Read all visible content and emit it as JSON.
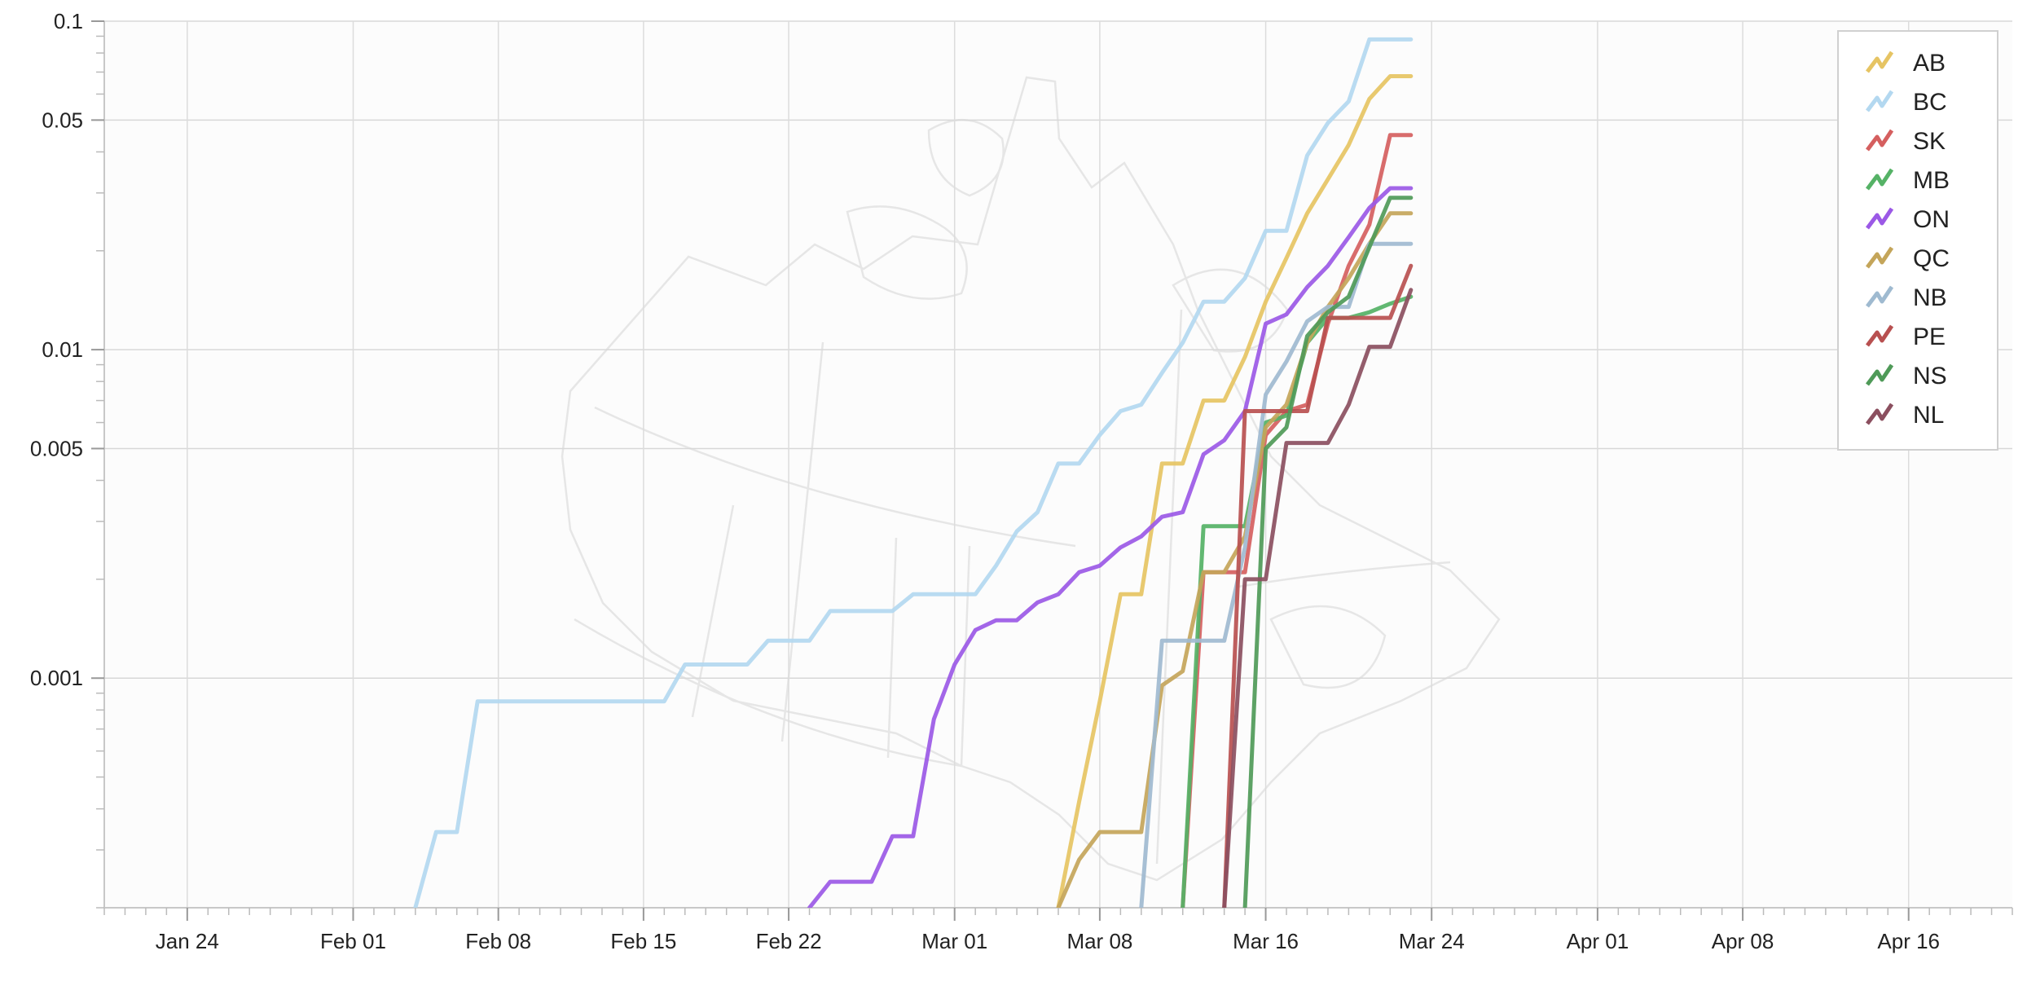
{
  "chart_data": {
    "type": "line",
    "title": "",
    "xlabel": "",
    "ylabel": "",
    "x_scale": "time",
    "y_scale": "log",
    "xlim": [
      "2020-01-20",
      "2020-04-21"
    ],
    "ylim": [
      0.0002,
      0.1
    ],
    "grid": true,
    "legend_position": "top-right",
    "background": "faint map of Canada",
    "x_ticks": [
      {
        "date": "2020-01-24",
        "label": "Jan 24"
      },
      {
        "date": "2020-02-01",
        "label": "Feb 01"
      },
      {
        "date": "2020-02-08",
        "label": "Feb 08"
      },
      {
        "date": "2020-02-15",
        "label": "Feb 15"
      },
      {
        "date": "2020-02-22",
        "label": "Feb 22"
      },
      {
        "date": "2020-03-01",
        "label": "Mar 01"
      },
      {
        "date": "2020-03-08",
        "label": "Mar 08"
      },
      {
        "date": "2020-03-16",
        "label": "Mar 16"
      },
      {
        "date": "2020-03-24",
        "label": "Mar 24"
      },
      {
        "date": "2020-04-01",
        "label": "Apr 01"
      },
      {
        "date": "2020-04-08",
        "label": "Apr 08"
      },
      {
        "date": "2020-04-16",
        "label": "Apr 16"
      }
    ],
    "y_ticks": [
      {
        "value": 0.1,
        "label": "0.1"
      },
      {
        "value": 0.05,
        "label": "0.05"
      },
      {
        "value": 0.01,
        "label": "0.01"
      },
      {
        "value": 0.005,
        "label": "0.005"
      },
      {
        "value": 0.001,
        "label": "0.001"
      }
    ],
    "series": [
      {
        "name": "AB",
        "color": "#e6c463",
        "points": [
          [
            "2020-03-06",
            0.0002
          ],
          [
            "2020-03-07",
            0.00042
          ],
          [
            "2020-03-08",
            0.00085
          ],
          [
            "2020-03-09",
            0.0018
          ],
          [
            "2020-03-10",
            0.0018
          ],
          [
            "2020-03-11",
            0.0045
          ],
          [
            "2020-03-12",
            0.0045
          ],
          [
            "2020-03-13",
            0.007
          ],
          [
            "2020-03-14",
            0.007
          ],
          [
            "2020-03-15",
            0.0095
          ],
          [
            "2020-03-16",
            0.014
          ],
          [
            "2020-03-17",
            0.019
          ],
          [
            "2020-03-18",
            0.026
          ],
          [
            "2020-03-19",
            0.033
          ],
          [
            "2020-03-20",
            0.042
          ],
          [
            "2020-03-21",
            0.058
          ],
          [
            "2020-03-22",
            0.068
          ],
          [
            "2020-03-23",
            0.068
          ]
        ]
      },
      {
        "name": "BC",
        "color": "#b3d8f0",
        "points": [
          [
            "2020-02-04",
            0.0002
          ],
          [
            "2020-02-05",
            0.00034
          ],
          [
            "2020-02-06",
            0.00034
          ],
          [
            "2020-02-07",
            0.00085
          ],
          [
            "2020-02-16",
            0.00085
          ],
          [
            "2020-02-17",
            0.0011
          ],
          [
            "2020-02-20",
            0.0011
          ],
          [
            "2020-02-21",
            0.0013
          ],
          [
            "2020-02-23",
            0.0013
          ],
          [
            "2020-02-24",
            0.0016
          ],
          [
            "2020-02-27",
            0.0016
          ],
          [
            "2020-02-28",
            0.0018
          ],
          [
            "2020-03-02",
            0.0018
          ],
          [
            "2020-03-03",
            0.0022
          ],
          [
            "2020-03-04",
            0.0028
          ],
          [
            "2020-03-05",
            0.0032
          ],
          [
            "2020-03-06",
            0.0045
          ],
          [
            "2020-03-07",
            0.0045
          ],
          [
            "2020-03-08",
            0.0055
          ],
          [
            "2020-03-09",
            0.0065
          ],
          [
            "2020-03-10",
            0.0068
          ],
          [
            "2020-03-11",
            0.0085
          ],
          [
            "2020-03-12",
            0.0105
          ],
          [
            "2020-03-13",
            0.014
          ],
          [
            "2020-03-14",
            0.014
          ],
          [
            "2020-03-15",
            0.0165
          ],
          [
            "2020-03-16",
            0.023
          ],
          [
            "2020-03-17",
            0.023
          ],
          [
            "2020-03-18",
            0.039
          ],
          [
            "2020-03-19",
            0.049
          ],
          [
            "2020-03-20",
            0.057
          ],
          [
            "2020-03-21",
            0.088
          ],
          [
            "2020-03-22",
            0.088
          ],
          [
            "2020-03-23",
            0.088
          ]
        ]
      },
      {
        "name": "SK",
        "color": "#d55f5f",
        "points": [
          [
            "2020-03-12",
            0.0002
          ],
          [
            "2020-03-13",
            0.0021
          ],
          [
            "2020-03-14",
            0.0021
          ],
          [
            "2020-03-15",
            0.0021
          ],
          [
            "2020-03-16",
            0.0055
          ],
          [
            "2020-03-17",
            0.0065
          ],
          [
            "2020-03-18",
            0.0068
          ],
          [
            "2020-03-19",
            0.012
          ],
          [
            "2020-03-20",
            0.018
          ],
          [
            "2020-03-21",
            0.024
          ],
          [
            "2020-03-22",
            0.045
          ],
          [
            "2020-03-23",
            0.045
          ]
        ]
      },
      {
        "name": "MB",
        "color": "#55b266",
        "points": [
          [
            "2020-03-12",
            0.0002
          ],
          [
            "2020-03-13",
            0.0029
          ],
          [
            "2020-03-14",
            0.0029
          ],
          [
            "2020-03-15",
            0.0029
          ],
          [
            "2020-03-16",
            0.006
          ],
          [
            "2020-03-17",
            0.0063
          ],
          [
            "2020-03-18",
            0.0105
          ],
          [
            "2020-03-19",
            0.0125
          ],
          [
            "2020-03-20",
            0.0125
          ],
          [
            "2020-03-21",
            0.013
          ],
          [
            "2020-03-22",
            0.0138
          ],
          [
            "2020-03-23",
            0.0145
          ]
        ]
      },
      {
        "name": "ON",
        "color": "#9b59e6",
        "points": [
          [
            "2020-02-23",
            0.0002
          ],
          [
            "2020-02-24",
            0.00024
          ],
          [
            "2020-02-26",
            0.00024
          ],
          [
            "2020-02-27",
            0.00033
          ],
          [
            "2020-02-28",
            0.00033
          ],
          [
            "2020-02-29",
            0.00075
          ],
          [
            "2020-03-01",
            0.0011
          ],
          [
            "2020-03-02",
            0.0014
          ],
          [
            "2020-03-03",
            0.0015
          ],
          [
            "2020-03-04",
            0.0015
          ],
          [
            "2020-03-05",
            0.0017
          ],
          [
            "2020-03-06",
            0.0018
          ],
          [
            "2020-03-07",
            0.0021
          ],
          [
            "2020-03-08",
            0.0022
          ],
          [
            "2020-03-09",
            0.0025
          ],
          [
            "2020-03-10",
            0.0027
          ],
          [
            "2020-03-11",
            0.0031
          ],
          [
            "2020-03-12",
            0.0032
          ],
          [
            "2020-03-13",
            0.0048
          ],
          [
            "2020-03-14",
            0.0053
          ],
          [
            "2020-03-15",
            0.0065
          ],
          [
            "2020-03-16",
            0.012
          ],
          [
            "2020-03-17",
            0.0128
          ],
          [
            "2020-03-18",
            0.0155
          ],
          [
            "2020-03-19",
            0.018
          ],
          [
            "2020-03-20",
            0.022
          ],
          [
            "2020-03-21",
            0.027
          ],
          [
            "2020-03-22",
            0.031
          ],
          [
            "2020-03-23",
            0.031
          ]
        ]
      },
      {
        "name": "QC",
        "color": "#c4a55a",
        "points": [
          [
            "2020-03-06",
            0.0002
          ],
          [
            "2020-03-07",
            0.00028
          ],
          [
            "2020-03-08",
            0.00034
          ],
          [
            "2020-03-10",
            0.00034
          ],
          [
            "2020-03-11",
            0.00095
          ],
          [
            "2020-03-12",
            0.00105
          ],
          [
            "2020-03-13",
            0.0021
          ],
          [
            "2020-03-14",
            0.0021
          ],
          [
            "2020-03-15",
            0.0027
          ],
          [
            "2020-03-16",
            0.0058
          ],
          [
            "2020-03-17",
            0.0068
          ],
          [
            "2020-03-18",
            0.0105
          ],
          [
            "2020-03-19",
            0.0135
          ],
          [
            "2020-03-20",
            0.0165
          ],
          [
            "2020-03-21",
            0.021
          ],
          [
            "2020-03-22",
            0.026
          ],
          [
            "2020-03-23",
            0.026
          ]
        ]
      },
      {
        "name": "NB",
        "color": "#9fbad0",
        "points": [
          [
            "2020-03-10",
            0.0002
          ],
          [
            "2020-03-11",
            0.0013
          ],
          [
            "2020-03-14",
            0.0013
          ],
          [
            "2020-03-15",
            0.0025
          ],
          [
            "2020-03-16",
            0.0073
          ],
          [
            "2020-03-17",
            0.0092
          ],
          [
            "2020-03-18",
            0.0122
          ],
          [
            "2020-03-19",
            0.0135
          ],
          [
            "2020-03-20",
            0.0135
          ],
          [
            "2020-03-21",
            0.021
          ],
          [
            "2020-03-22",
            0.021
          ],
          [
            "2020-03-23",
            0.021
          ]
        ]
      },
      {
        "name": "PE",
        "color": "#b85050",
        "points": [
          [
            "2020-03-14",
            0.0002
          ],
          [
            "2020-03-15",
            0.0065
          ],
          [
            "2020-03-16",
            0.0065
          ],
          [
            "2020-03-17",
            0.0065
          ],
          [
            "2020-03-18",
            0.0065
          ],
          [
            "2020-03-19",
            0.0125
          ],
          [
            "2020-03-20",
            0.0125
          ],
          [
            "2020-03-21",
            0.0125
          ],
          [
            "2020-03-22",
            0.0125
          ],
          [
            "2020-03-23",
            0.018
          ]
        ]
      },
      {
        "name": "NS",
        "color": "#4f9a58",
        "points": [
          [
            "2020-03-15",
            0.0002
          ],
          [
            "2020-03-16",
            0.005
          ],
          [
            "2020-03-17",
            0.0058
          ],
          [
            "2020-03-18",
            0.011
          ],
          [
            "2020-03-19",
            0.013
          ],
          [
            "2020-03-20",
            0.0145
          ],
          [
            "2020-03-21",
            0.0205
          ],
          [
            "2020-03-22",
            0.029
          ],
          [
            "2020-03-23",
            0.029
          ]
        ]
      },
      {
        "name": "NL",
        "color": "#8b4f5f",
        "points": [
          [
            "2020-03-14",
            0.0002
          ],
          [
            "2020-03-15",
            0.002
          ],
          [
            "2020-03-16",
            0.002
          ],
          [
            "2020-03-17",
            0.0052
          ],
          [
            "2020-03-19",
            0.0052
          ],
          [
            "2020-03-20",
            0.0068
          ],
          [
            "2020-03-21",
            0.0102
          ],
          [
            "2020-03-22",
            0.0102
          ],
          [
            "2020-03-23",
            0.0152
          ]
        ]
      }
    ]
  }
}
